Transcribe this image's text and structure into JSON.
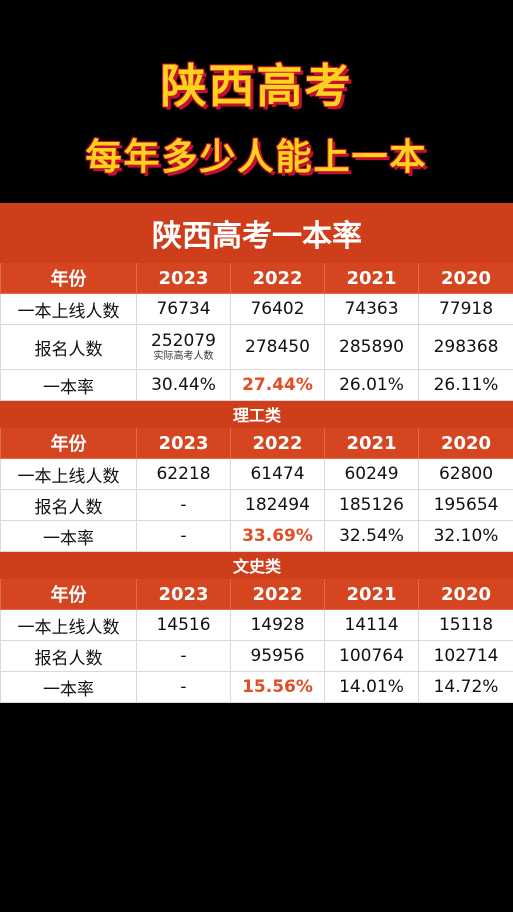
{
  "hero": {
    "title": "陕西高考",
    "subtitle": "每年多少人能上一本"
  },
  "table_title": "陕西高考一本率",
  "overall": {
    "header": [
      "年份",
      "2023",
      "2022",
      "2021",
      "2020"
    ],
    "rows": [
      [
        "一本上线人数",
        "76734",
        "76402",
        "74363",
        "77918"
      ],
      [
        "报名人数",
        "252079",
        "278450",
        "285890",
        "298368"
      ],
      [
        "一本率",
        "30.44%",
        "27.44%",
        "26.01%",
        "26.11%"
      ]
    ],
    "registration_note": "实际高考人数"
  },
  "science": {
    "section_title": "理工类",
    "header": [
      "年份",
      "2023",
      "2022",
      "2021",
      "2020"
    ],
    "rows": [
      [
        "一本上线人数",
        "62218",
        "61474",
        "60249",
        "62800"
      ],
      [
        "报名人数",
        "-",
        "182494",
        "185126",
        "195654"
      ],
      [
        "一本率",
        "-",
        "33.69%",
        "32.54%",
        "32.10%"
      ]
    ]
  },
  "arts": {
    "section_title": "文史类",
    "header": [
      "年份",
      "2023",
      "2022",
      "2021",
      "2020"
    ],
    "rows": [
      [
        "一本上线人数",
        "14516",
        "14928",
        "14114",
        "15118"
      ],
      [
        "报名人数",
        "-",
        "95956",
        "100764",
        "102714"
      ],
      [
        "一本率",
        "-",
        "15.56%",
        "14.01%",
        "14.72%"
      ]
    ]
  },
  "colors": {
    "title_yellow": "#ffd21c",
    "title_shadow": "#c8102e",
    "header_bg": "#d5451f",
    "highlight": "#e14d24"
  }
}
